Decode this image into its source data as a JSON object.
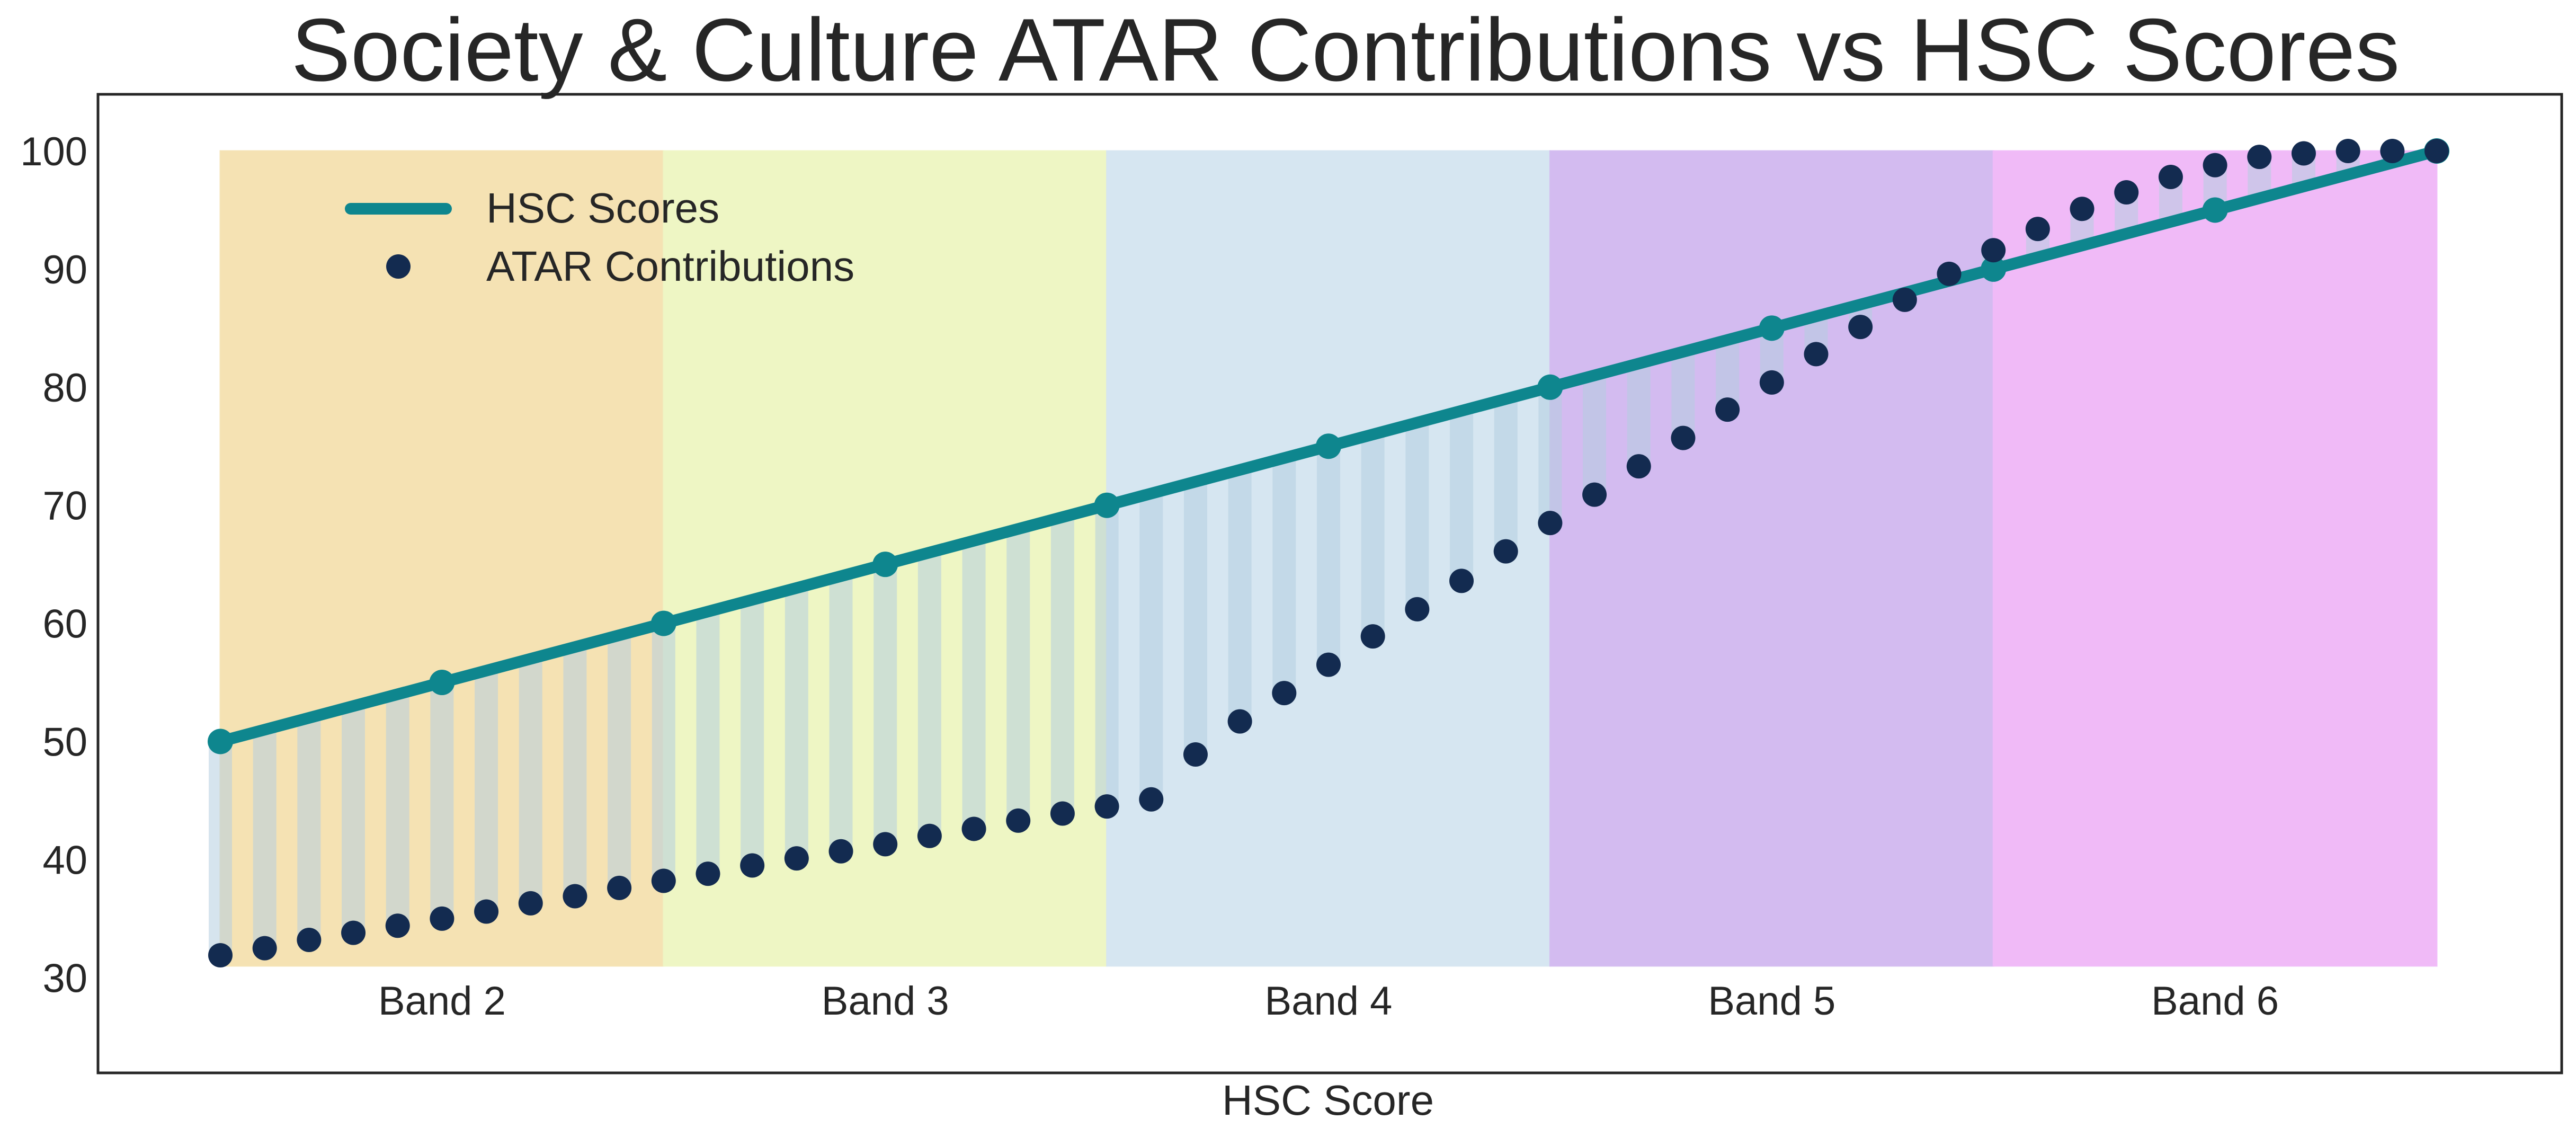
{
  "chart_data": {
    "type": "line",
    "title": "Society & Culture ATAR Contributions vs HSC Scores",
    "xlabel": "HSC Score",
    "ylabel": "",
    "ylim": [
      21,
      105
    ],
    "yticks": [
      30,
      40,
      50,
      60,
      70,
      80,
      90,
      100
    ],
    "grid": false,
    "legend_position": "top-left",
    "colors": {
      "hsc_line": "#0e868e",
      "atar_points": "#132b50",
      "connector": "#b4cde0"
    },
    "bands": [
      {
        "label": "Band 2",
        "x_start": 50,
        "x_end": 60,
        "color": "#f5e2b3"
      },
      {
        "label": "Band 3",
        "x_start": 60,
        "x_end": 70,
        "color": "#eef6c4"
      },
      {
        "label": "Band 4",
        "x_start": 70,
        "x_end": 80,
        "color": "#d6e6f1"
      },
      {
        "label": "Band 5",
        "x_start": 80,
        "x_end": 90,
        "color": "#d3bbf0"
      },
      {
        "label": "Band 6",
        "x_start": 90,
        "x_end": 100,
        "color": "#f0baf7"
      }
    ],
    "band_shading_range": [
      31,
      100
    ],
    "series": [
      {
        "name": "HSC Scores",
        "kind": "line",
        "x": [
          50,
          55,
          60,
          65,
          70,
          75,
          80,
          85,
          90,
          95,
          100
        ],
        "y": [
          50,
          55,
          60,
          65,
          70,
          75,
          80,
          85,
          90,
          95,
          100
        ]
      },
      {
        "name": "ATAR Contributions",
        "kind": "scatter",
        "x": [
          50,
          51,
          52,
          53,
          54,
          55,
          56,
          57,
          58,
          59,
          60,
          61,
          62,
          63,
          64,
          65,
          66,
          67,
          68,
          69,
          70,
          71,
          72,
          73,
          74,
          75,
          76,
          77,
          78,
          79,
          80,
          81,
          82,
          83,
          84,
          85,
          86,
          87,
          88,
          89,
          90,
          91,
          92,
          93,
          94,
          95,
          96,
          97,
          98,
          99,
          100
        ],
        "y": [
          31.9,
          32.5,
          33.2,
          33.8,
          34.4,
          35.0,
          35.6,
          36.3,
          36.9,
          37.6,
          38.2,
          38.8,
          39.5,
          40.1,
          40.7,
          41.3,
          42.0,
          42.6,
          43.3,
          43.9,
          44.5,
          45.1,
          48.9,
          51.7,
          54.1,
          56.5,
          58.9,
          61.2,
          63.6,
          66.1,
          68.5,
          70.9,
          73.3,
          75.7,
          78.1,
          80.4,
          82.8,
          85.1,
          87.4,
          89.6,
          91.6,
          93.4,
          95.1,
          96.5,
          97.8,
          98.8,
          99.5,
          99.8,
          100.0,
          100.0,
          100.0
        ]
      }
    ]
  }
}
